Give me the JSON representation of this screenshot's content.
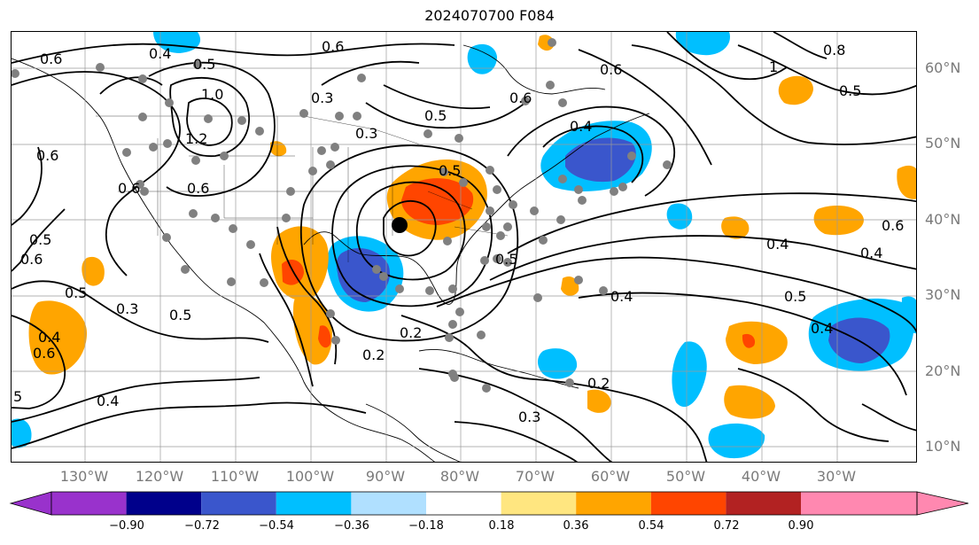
{
  "title": "2024070700 F084",
  "lat_labels": [
    "60°N",
    "50°N",
    "40°N",
    "30°N",
    "20°N",
    "10°N"
  ],
  "lon_labels": [
    "130°W",
    "120°W",
    "110°W",
    "100°W",
    "90°W",
    "80°W",
    "70°W",
    "60°W",
    "50°W",
    "40°W",
    "30°W"
  ],
  "colorbar": {
    "ticks": [
      "−0.90",
      "−0.72",
      "−0.54",
      "−0.36",
      "−0.18",
      "0.18",
      "0.36",
      "0.54",
      "0.72",
      "0.90"
    ],
    "colors": [
      "#9932cc",
      "#00008b",
      "#3a56cc",
      "#00bfff",
      "#b0e0ff",
      "#ffffff",
      "#ffe680",
      "#ffa500",
      "#ff4500",
      "#b22222",
      "#ff88b0"
    ],
    "extend": "both"
  },
  "contour_labels": [
    {
      "text": "0.6"
    },
    {
      "text": "0.4"
    },
    {
      "text": "0.5"
    },
    {
      "text": "1.0"
    },
    {
      "text": "1.2"
    },
    {
      "text": "0.6"
    },
    {
      "text": "0.6"
    },
    {
      "text": "0.5"
    },
    {
      "text": "0.6"
    },
    {
      "text": "0.5"
    },
    {
      "text": "0.3"
    },
    {
      "text": "0.5"
    },
    {
      "text": "0.4"
    },
    {
      "text": "0.6"
    },
    {
      "text": "5"
    },
    {
      "text": "0.4"
    },
    {
      "text": "0.6"
    },
    {
      "text": "0.3"
    },
    {
      "text": "0.3"
    },
    {
      "text": "0.5"
    },
    {
      "text": "0.5"
    },
    {
      "text": "0.6"
    },
    {
      "text": "0.5"
    },
    {
      "text": "0.2"
    },
    {
      "text": "0.2"
    },
    {
      "text": "0.3"
    },
    {
      "text": "0.2"
    },
    {
      "text": "0.6"
    },
    {
      "text": "0.8"
    },
    {
      "text": "0.5"
    },
    {
      "text": "1"
    },
    {
      "text": "0.4"
    },
    {
      "text": "0.4"
    },
    {
      "text": "0.4"
    },
    {
      "text": "0.5"
    },
    {
      "text": "0.6"
    },
    {
      "text": "0.4"
    },
    {
      "text": "0.4"
    },
    {
      "text": "0.6"
    }
  ]
}
